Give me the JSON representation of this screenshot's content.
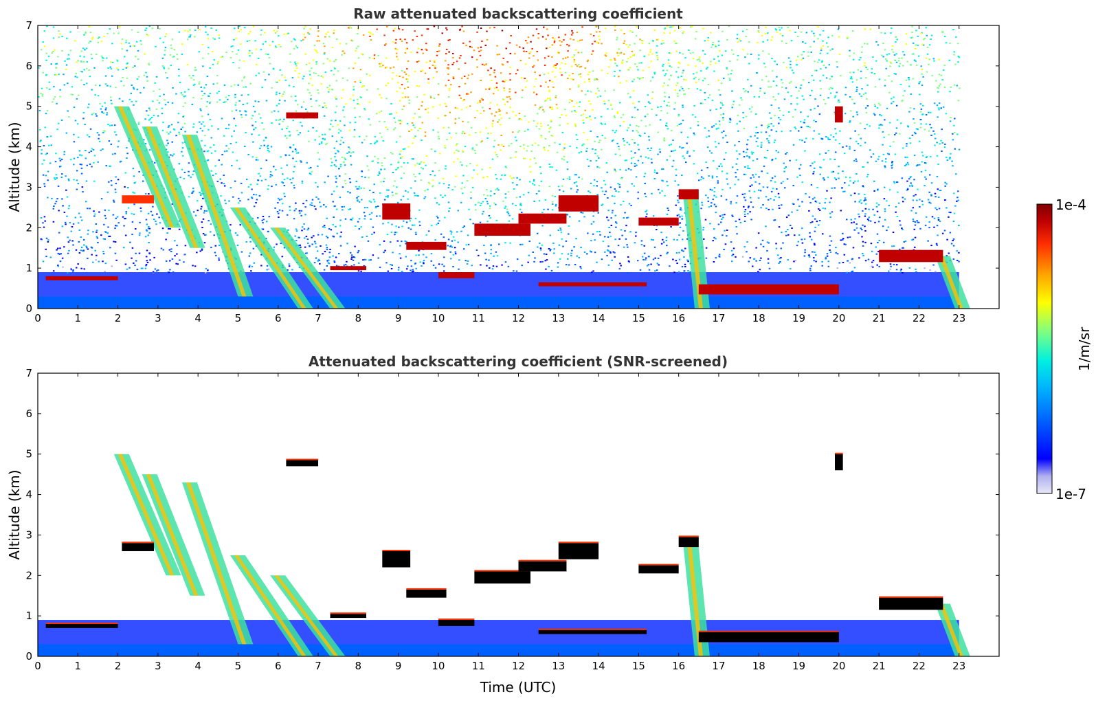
{
  "colors": {
    "colormap": [
      "#e8e8f8",
      "#b0b0f0",
      "#0000ff",
      "#0060ff",
      "#00b0ff",
      "#00f0e0",
      "#80ff80",
      "#ffff00",
      "#ffa000",
      "#ff3000",
      "#c00000",
      "#800000"
    ],
    "background": "#ffffff",
    "title_text": "#333333",
    "saturated_mark": "#000000"
  },
  "colorbar": {
    "max_label": "1e-4",
    "min_label": "1e-7",
    "unit_label": "1/m/sr",
    "scale": "log"
  },
  "chart_data": [
    {
      "type": "heatmap",
      "title": "Raw attenuated backscattering coefficient",
      "xlabel": "",
      "ylabel": "Altitude (km)",
      "xlim": [
        0,
        24
      ],
      "ylim": [
        0,
        7
      ],
      "xticks": [
        "0",
        "1",
        "2",
        "3",
        "4",
        "5",
        "6",
        "7",
        "8",
        "9",
        "10",
        "11",
        "12",
        "13",
        "14",
        "15",
        "16",
        "17",
        "18",
        "19",
        "20",
        "21",
        "22",
        "23"
      ],
      "yticks": [
        "0",
        "1",
        "2",
        "3",
        "4",
        "5",
        "6",
        "7"
      ],
      "data_end_hour": 23,
      "noise_background": true,
      "layers": [
        {
          "x": [
            0.2,
            2.0
          ],
          "y": [
            0.7,
            0.8
          ],
          "level": 0.95
        },
        {
          "x": [
            2.1,
            2.9
          ],
          "y": [
            2.6,
            2.8
          ],
          "level": 0.85
        },
        {
          "x": [
            6.2,
            7.0
          ],
          "y": [
            4.7,
            4.85
          ],
          "level": 0.9
        },
        {
          "x": [
            7.3,
            8.2
          ],
          "y": [
            0.95,
            1.05
          ],
          "level": 0.9
        },
        {
          "x": [
            8.6,
            9.3
          ],
          "y": [
            2.2,
            2.6
          ],
          "level": 0.95
        },
        {
          "x": [
            9.2,
            10.2
          ],
          "y": [
            1.45,
            1.65
          ],
          "level": 0.95
        },
        {
          "x": [
            10.0,
            10.9
          ],
          "y": [
            0.75,
            0.9
          ],
          "level": 0.95
        },
        {
          "x": [
            10.9,
            12.3
          ],
          "y": [
            1.8,
            2.1
          ],
          "level": 0.95
        },
        {
          "x": [
            12.0,
            13.2
          ],
          "y": [
            2.1,
            2.35
          ],
          "level": 0.95
        },
        {
          "x": [
            13.0,
            14.0
          ],
          "y": [
            2.4,
            2.8
          ],
          "level": 0.9
        },
        {
          "x": [
            15.0,
            16.0
          ],
          "y": [
            2.05,
            2.25
          ],
          "level": 0.95
        },
        {
          "x": [
            16.0,
            16.5
          ],
          "y": [
            2.7,
            2.95
          ],
          "level": 0.9
        },
        {
          "x": [
            12.5,
            15.2
          ],
          "y": [
            0.55,
            0.65
          ],
          "level": 0.95
        },
        {
          "x": [
            16.5,
            20.0
          ],
          "y": [
            0.35,
            0.6
          ],
          "level": 0.95
        },
        {
          "x": [
            21.0,
            22.6
          ],
          "y": [
            1.15,
            1.45
          ],
          "level": 0.9
        },
        {
          "x": [
            19.9,
            20.1
          ],
          "y": [
            4.6,
            5.0
          ],
          "level": 0.9
        }
      ],
      "precipitation_streaks": [
        {
          "x_top": 1.9,
          "x_bottom": 3.2,
          "y_top": 5.0,
          "y_bottom": 2.0
        },
        {
          "x_top": 2.6,
          "x_bottom": 3.8,
          "y_top": 4.5,
          "y_bottom": 1.5
        },
        {
          "x_top": 3.6,
          "x_bottom": 5.0,
          "y_top": 4.3,
          "y_bottom": 0.3
        },
        {
          "x_top": 4.8,
          "x_bottom": 6.5,
          "y_top": 2.5,
          "y_bottom": 0.0
        },
        {
          "x_top": 5.8,
          "x_bottom": 7.3,
          "y_top": 2.0,
          "y_bottom": 0.0
        },
        {
          "x_top": 16.1,
          "x_bottom": 16.4,
          "y_top": 2.9,
          "y_bottom": 0.0
        },
        {
          "x_top": 22.4,
          "x_bottom": 22.9,
          "y_top": 1.3,
          "y_bottom": 0.0
        }
      ]
    },
    {
      "type": "heatmap",
      "title": "Attenuated backscattering coefficient (SNR-screened)",
      "xlabel": "Time (UTC)",
      "ylabel": "Altitude (km)",
      "xlim": [
        0,
        24
      ],
      "ylim": [
        0,
        7
      ],
      "xticks": [
        "0",
        "1",
        "2",
        "3",
        "4",
        "5",
        "6",
        "7",
        "8",
        "9",
        "10",
        "11",
        "12",
        "13",
        "14",
        "15",
        "16",
        "17",
        "18",
        "19",
        "20",
        "21",
        "22",
        "23"
      ],
      "yticks": [
        "0",
        "1",
        "2",
        "3",
        "4",
        "5",
        "6",
        "7"
      ],
      "data_end_hour": 23,
      "noise_background": false
    }
  ]
}
